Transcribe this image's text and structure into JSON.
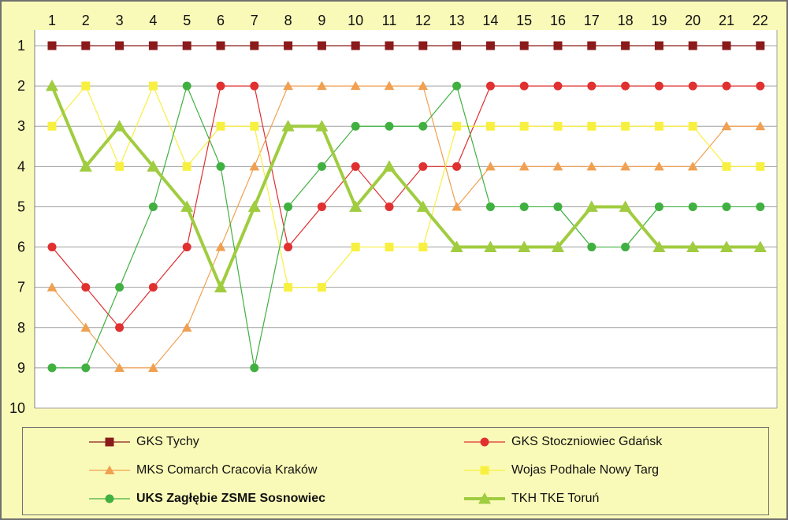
{
  "chart_data": {
    "type": "line",
    "x": [
      1,
      2,
      3,
      4,
      5,
      6,
      7,
      8,
      9,
      10,
      11,
      12,
      13,
      14,
      15,
      16,
      17,
      18,
      19,
      20,
      21,
      22
    ],
    "x_ticks": [
      "1",
      "2",
      "3",
      "4",
      "5",
      "6",
      "7",
      "8",
      "9",
      "10",
      "11",
      "12",
      "13",
      "14",
      "15",
      "16",
      "17",
      "18",
      "19",
      "20",
      "21",
      "22"
    ],
    "y_ticks": [
      "1",
      "2",
      "3",
      "4",
      "5",
      "6",
      "7",
      "8",
      "9",
      "10"
    ],
    "ylim": [
      1,
      10
    ],
    "y_inverted": true,
    "x_axis_position": "top",
    "grid": true,
    "legend_position": "bottom",
    "series": [
      {
        "name": "GKS Tychy",
        "color": "#8b1a1a",
        "marker": "square",
        "values": [
          1,
          1,
          1,
          1,
          1,
          1,
          1,
          1,
          1,
          1,
          1,
          1,
          1,
          1,
          1,
          1,
          1,
          1,
          1,
          1,
          1,
          1
        ]
      },
      {
        "name": "GKS Stoczniowiec Gdańsk",
        "color": "#e03030",
        "marker": "circle",
        "values": [
          6,
          7,
          8,
          7,
          6,
          2,
          2,
          6,
          5,
          4,
          5,
          4,
          4,
          2,
          2,
          2,
          2,
          2,
          2,
          2,
          2,
          2
        ]
      },
      {
        "name": "MKS Comarch Cracovia Kraków",
        "color": "#f0a050",
        "marker": "triangle",
        "values": [
          7,
          8,
          9,
          9,
          8,
          6,
          4,
          2,
          2,
          2,
          2,
          2,
          5,
          4,
          4,
          4,
          4,
          4,
          4,
          4,
          3,
          3
        ]
      },
      {
        "name": "Wojas Podhale Nowy Targ",
        "color": "#f8f040",
        "marker": "square",
        "values": [
          3,
          2,
          4,
          2,
          4,
          3,
          3,
          7,
          7,
          6,
          6,
          6,
          3,
          3,
          3,
          3,
          3,
          3,
          3,
          3,
          4,
          4
        ]
      },
      {
        "name": "UKS Zagłębie ZSME Sosnowiec",
        "color": "#40b040",
        "marker": "circle",
        "bold": true,
        "values": [
          9,
          9,
          7,
          5,
          2,
          4,
          9,
          5,
          4,
          3,
          3,
          3,
          2,
          5,
          5,
          5,
          6,
          6,
          5,
          5,
          5,
          5
        ]
      },
      {
        "name": "TKH TKE Toruń",
        "color": "#a0cc40",
        "marker": "triangle",
        "thick": true,
        "values": [
          2,
          4,
          3,
          4,
          5,
          7,
          5,
          3,
          3,
          5,
          4,
          5,
          6,
          6,
          6,
          6,
          5,
          5,
          6,
          6,
          6,
          6
        ]
      }
    ]
  }
}
